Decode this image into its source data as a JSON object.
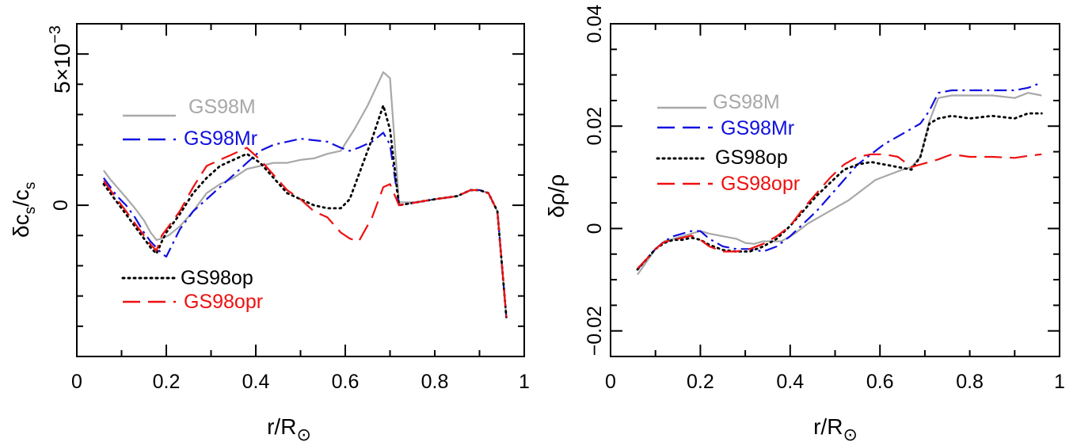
{
  "chart_data": [
    {
      "type": "line",
      "panel": "left",
      "xlabel": "r/R",
      "xlabel_sub": "⊙",
      "ylabel": "δc",
      "ylabel_sub": "s",
      "ylabel_mid": "/c",
      "ylabel_sub2": "s",
      "y_exponent_label": "5×10",
      "y_exponent_sup": "−3",
      "xlim": [
        0,
        1
      ],
      "ylim": [
        -0.005,
        0.006
      ],
      "x_ticks": [
        0,
        0.2,
        0.4,
        0.6,
        0.8,
        1
      ],
      "x_tick_labels": [
        "0",
        "0.2",
        "0.4",
        "0.6",
        "0.8",
        "1"
      ],
      "y_ticks": [
        0,
        0.005
      ],
      "y_tick_labels": [
        "0",
        ""
      ],
      "legend_placement": "upper-left and lower-left",
      "grid": false,
      "series": [
        {
          "name": "GS98M",
          "color": "#a8a8a8",
          "dash": "solid",
          "x": [
            0.06,
            0.075,
            0.09,
            0.11,
            0.13,
            0.15,
            0.165,
            0.178,
            0.19,
            0.205,
            0.23,
            0.26,
            0.29,
            0.32,
            0.35,
            0.38,
            0.41,
            0.44,
            0.47,
            0.5,
            0.53,
            0.56,
            0.59,
            0.62,
            0.65,
            0.685,
            0.7,
            0.72,
            0.76,
            0.8,
            0.85,
            0.88,
            0.9,
            0.92,
            0.94,
            0.96
          ],
          "y": [
            0.00115,
            0.00085,
            0.0006,
            0.00025,
            -0.0001,
            -0.0005,
            -0.0009,
            -0.00115,
            -0.0011,
            -0.001,
            -0.0007,
            -0.0002,
            0.0004,
            0.0007,
            0.0009,
            0.0012,
            0.0013,
            0.0014,
            0.0014,
            0.0015,
            0.00155,
            0.0017,
            0.0018,
            0.0025,
            0.0033,
            0.0044,
            0.0042,
            0.0001,
            0.0001,
            0.0002,
            0.0003,
            0.0005,
            0.0005,
            0.0004,
            -0.0002,
            -0.0037
          ]
        },
        {
          "name": "GS98Mr",
          "color": "#1010e0",
          "dash": "dashdot",
          "x": [
            0.06,
            0.075,
            0.09,
            0.11,
            0.13,
            0.15,
            0.165,
            0.178,
            0.19,
            0.2,
            0.23,
            0.26,
            0.29,
            0.32,
            0.35,
            0.38,
            0.41,
            0.44,
            0.47,
            0.5,
            0.53,
            0.56,
            0.59,
            0.61,
            0.63,
            0.66,
            0.685,
            0.7,
            0.72,
            0.76,
            0.8,
            0.85,
            0.88,
            0.9,
            0.92,
            0.94,
            0.96
          ],
          "y": [
            0.0009,
            0.0006,
            0.0003,
            0.0,
            -0.0004,
            -0.0009,
            -0.0012,
            -0.0014,
            -0.0016,
            -0.0017,
            -0.0008,
            -0.0002,
            0.0002,
            0.0006,
            0.001,
            0.0014,
            0.0018,
            0.002,
            0.0021,
            0.0022,
            0.00215,
            0.0021,
            0.0019,
            0.0018,
            0.0019,
            0.0021,
            0.0024,
            0.002,
            0.0,
            0.0001,
            0.0002,
            0.0003,
            0.0005,
            0.0005,
            0.0004,
            -0.0002,
            -0.0037
          ]
        },
        {
          "name": "GS98op",
          "color": "#000000",
          "dash": "dotted",
          "x": [
            0.06,
            0.075,
            0.09,
            0.11,
            0.13,
            0.15,
            0.165,
            0.178,
            0.19,
            0.2,
            0.23,
            0.26,
            0.29,
            0.32,
            0.35,
            0.38,
            0.41,
            0.44,
            0.47,
            0.5,
            0.53,
            0.56,
            0.59,
            0.61,
            0.63,
            0.66,
            0.685,
            0.7,
            0.72,
            0.76,
            0.8,
            0.85,
            0.88,
            0.9,
            0.92,
            0.94,
            0.96
          ],
          "y": [
            0.0007,
            0.0004,
            0.0001,
            -0.0003,
            -0.0007,
            -0.0011,
            -0.0014,
            -0.0016,
            -0.0012,
            -0.0009,
            -0.0003,
            0.0004,
            0.0009,
            0.0013,
            0.0015,
            0.0017,
            0.0014,
            0.0009,
            0.0004,
            0.0002,
            0.0,
            -0.0001,
            -0.0001,
            0.0002,
            0.001,
            0.0022,
            0.0033,
            0.0025,
            0.0,
            0.0001,
            0.0002,
            0.0003,
            0.0005,
            0.0005,
            0.0004,
            -0.0002,
            -0.0037
          ]
        },
        {
          "name": "GS98opr",
          "color": "#ee1010",
          "dash": "dashed",
          "x": [
            0.06,
            0.075,
            0.09,
            0.11,
            0.13,
            0.15,
            0.165,
            0.178,
            0.19,
            0.2,
            0.23,
            0.26,
            0.29,
            0.32,
            0.35,
            0.38,
            0.41,
            0.44,
            0.47,
            0.5,
            0.53,
            0.56,
            0.59,
            0.61,
            0.63,
            0.66,
            0.685,
            0.7,
            0.72,
            0.76,
            0.8,
            0.85,
            0.88,
            0.9,
            0.92,
            0.94,
            0.96
          ],
          "y": [
            0.0008,
            0.0005,
            0.0002,
            -0.0002,
            -0.0006,
            -0.001,
            -0.0013,
            -0.0015,
            -0.001,
            -0.0008,
            -0.0002,
            0.0006,
            0.0013,
            0.0015,
            0.0017,
            0.0019,
            0.0015,
            0.001,
            0.0005,
            0.0002,
            -0.0002,
            -0.0004,
            -0.0009,
            -0.0011,
            -0.0012,
            -0.0004,
            0.0006,
            0.0007,
            0.0,
            0.0001,
            0.0002,
            0.0003,
            0.0005,
            0.0005,
            0.0004,
            -0.0002,
            -0.0037
          ]
        }
      ]
    },
    {
      "type": "line",
      "panel": "right",
      "xlabel": "r/R",
      "xlabel_sub": "⊙",
      "ylabel": "δρ/ρ",
      "xlim": [
        0,
        1
      ],
      "ylim": [
        -0.025,
        0.04
      ],
      "x_ticks": [
        0,
        0.2,
        0.4,
        0.6,
        0.8,
        1
      ],
      "x_tick_labels": [
        "0",
        "0.2",
        "0.4",
        "0.6",
        "0.8",
        "1"
      ],
      "y_ticks": [
        -0.02,
        0,
        0.02,
        0.04
      ],
      "y_tick_labels": [
        "−0.02",
        "0",
        "0.02",
        "0.04"
      ],
      "legend_placement": "upper-left",
      "grid": false,
      "series": [
        {
          "name": "GS98M",
          "color": "#a8a8a8",
          "dash": "solid",
          "x": [
            0.06,
            0.08,
            0.1,
            0.12,
            0.14,
            0.16,
            0.18,
            0.2,
            0.22,
            0.25,
            0.28,
            0.3,
            0.32,
            0.34,
            0.36,
            0.38,
            0.41,
            0.44,
            0.47,
            0.5,
            0.53,
            0.56,
            0.59,
            0.62,
            0.65,
            0.67,
            0.69,
            0.71,
            0.73,
            0.76,
            0.8,
            0.85,
            0.9,
            0.93,
            0.96
          ],
          "y": [
            -0.009,
            -0.0065,
            -0.004,
            -0.0025,
            -0.002,
            -0.0015,
            -0.001,
            -0.0005,
            -0.001,
            -0.0015,
            -0.002,
            -0.0028,
            -0.003,
            -0.0025,
            -0.0025,
            -0.0025,
            -0.001,
            0.001,
            0.0025,
            0.004,
            0.0055,
            0.0075,
            0.0095,
            0.0105,
            0.0115,
            0.012,
            0.014,
            0.021,
            0.0255,
            0.026,
            0.026,
            0.026,
            0.0255,
            0.0265,
            0.026
          ]
        },
        {
          "name": "GS98Mr",
          "color": "#1010e0",
          "dash": "dashdot",
          "x": [
            0.06,
            0.08,
            0.1,
            0.12,
            0.14,
            0.16,
            0.18,
            0.2,
            0.22,
            0.25,
            0.28,
            0.31,
            0.34,
            0.37,
            0.4,
            0.43,
            0.46,
            0.49,
            0.52,
            0.55,
            0.58,
            0.61,
            0.64,
            0.67,
            0.69,
            0.71,
            0.73,
            0.76,
            0.8,
            0.85,
            0.9,
            0.93,
            0.96
          ],
          "y": [
            -0.008,
            -0.006,
            -0.004,
            -0.0025,
            -0.0015,
            -0.001,
            -0.0005,
            -0.0005,
            -0.002,
            -0.0035,
            -0.004,
            -0.004,
            -0.0045,
            -0.0035,
            -0.0015,
            0.001,
            0.0035,
            0.0065,
            0.0095,
            0.0125,
            0.0145,
            0.0165,
            0.018,
            0.0195,
            0.0205,
            0.023,
            0.0265,
            0.027,
            0.027,
            0.027,
            0.027,
            0.0275,
            0.0285
          ]
        },
        {
          "name": "GS98op",
          "color": "#000000",
          "dash": "dotted",
          "x": [
            0.06,
            0.08,
            0.1,
            0.12,
            0.14,
            0.16,
            0.18,
            0.2,
            0.22,
            0.25,
            0.28,
            0.31,
            0.34,
            0.37,
            0.4,
            0.43,
            0.46,
            0.49,
            0.52,
            0.55,
            0.58,
            0.61,
            0.64,
            0.67,
            0.69,
            0.71,
            0.73,
            0.76,
            0.8,
            0.85,
            0.9,
            0.93,
            0.96
          ],
          "y": [
            -0.008,
            -0.006,
            -0.004,
            -0.0028,
            -0.0022,
            -0.0022,
            -0.0018,
            -0.0022,
            -0.0032,
            -0.0042,
            -0.0045,
            -0.0045,
            -0.0035,
            -0.002,
            0.0005,
            0.0035,
            0.0065,
            0.009,
            0.0115,
            0.0125,
            0.013,
            0.0125,
            0.012,
            0.0115,
            0.014,
            0.0205,
            0.0215,
            0.022,
            0.0215,
            0.022,
            0.0215,
            0.0225,
            0.0225
          ]
        },
        {
          "name": "GS98opr",
          "color": "#ee1010",
          "dash": "dashed",
          "x": [
            0.06,
            0.08,
            0.1,
            0.12,
            0.14,
            0.16,
            0.18,
            0.2,
            0.22,
            0.25,
            0.28,
            0.31,
            0.34,
            0.37,
            0.4,
            0.43,
            0.46,
            0.49,
            0.52,
            0.55,
            0.58,
            0.61,
            0.64,
            0.67,
            0.69,
            0.71,
            0.73,
            0.76,
            0.8,
            0.85,
            0.9,
            0.93,
            0.96
          ],
          "y": [
            -0.0078,
            -0.006,
            -0.004,
            -0.0026,
            -0.0022,
            -0.0018,
            -0.0014,
            -0.0022,
            -0.0035,
            -0.0045,
            -0.0045,
            -0.004,
            -0.003,
            -0.0015,
            0.0005,
            0.004,
            0.007,
            0.01,
            0.0125,
            0.014,
            0.0145,
            0.0145,
            0.014,
            0.012,
            0.0125,
            0.013,
            0.0135,
            0.0145,
            0.014,
            0.014,
            0.0138,
            0.0142,
            0.0145
          ]
        }
      ]
    }
  ],
  "legend_labels": [
    "GS98M",
    "GS98Mr",
    "GS98op",
    "GS98opr"
  ]
}
